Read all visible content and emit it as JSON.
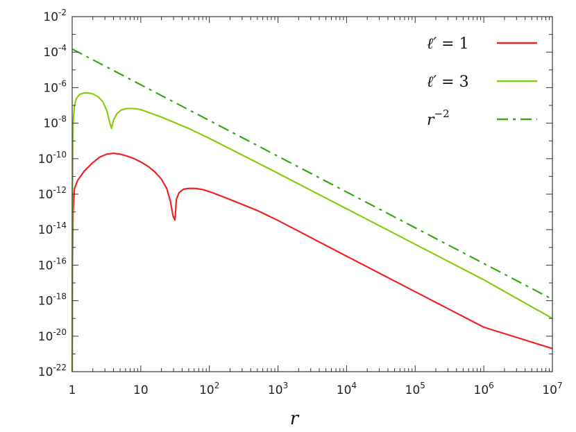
{
  "chart_data": {
    "type": "line",
    "title": "",
    "xlabel": "r",
    "ylabel": "",
    "xscale": "log",
    "yscale": "log",
    "xlim": [
      1,
      10000000
    ],
    "ylim": [
      1e-22,
      0.01
    ],
    "grid": false,
    "legend_position": "top-right",
    "x_ticks": [
      {
        "base": "1",
        "exp": ""
      },
      {
        "base": "10",
        "exp": ""
      },
      {
        "base": "10",
        "exp": "2"
      },
      {
        "base": "10",
        "exp": "3"
      },
      {
        "base": "10",
        "exp": "4"
      },
      {
        "base": "10",
        "exp": "5"
      },
      {
        "base": "10",
        "exp": "6"
      },
      {
        "base": "10",
        "exp": "7"
      }
    ],
    "y_ticks": [
      {
        "base": "10",
        "exp": "-2"
      },
      {
        "base": "10",
        "exp": "-4"
      },
      {
        "base": "10",
        "exp": "-6"
      },
      {
        "base": "10",
        "exp": "-8"
      },
      {
        "base": "10",
        "exp": "-10"
      },
      {
        "base": "10",
        "exp": "-12"
      },
      {
        "base": "10",
        "exp": "-14"
      },
      {
        "base": "10",
        "exp": "-16"
      },
      {
        "base": "10",
        "exp": "-18"
      },
      {
        "base": "10",
        "exp": "-20"
      },
      {
        "base": "10",
        "exp": "-22"
      }
    ],
    "series": [
      {
        "name": "ℓ′ = 1",
        "color": "#ee2222",
        "dash": "solid",
        "points": [
          [
            1.0,
            1e-22
          ],
          [
            1.01,
            1e-16
          ],
          [
            1.03,
            1e-13
          ],
          [
            1.08,
            2e-12
          ],
          [
            1.2,
            6e-12
          ],
          [
            1.5,
            2e-11
          ],
          [
            2.0,
            6e-11
          ],
          [
            2.5,
            1.2e-10
          ],
          [
            3.2,
            1.8e-10
          ],
          [
            4.0,
            2e-10
          ],
          [
            5.0,
            1.8e-10
          ],
          [
            6.3,
            1.4e-10
          ],
          [
            8.0,
            1e-10
          ],
          [
            10.0,
            6.5e-11
          ],
          [
            13.0,
            3.5e-11
          ],
          [
            16.0,
            1.8e-11
          ],
          [
            20.0,
            7e-12
          ],
          [
            24.0,
            2e-12
          ],
          [
            27.0,
            4e-13
          ],
          [
            29.5,
            6e-14
          ],
          [
            31.5,
            3.5e-14
          ],
          [
            33.0,
            5e-13
          ],
          [
            36.0,
            1.2e-12
          ],
          [
            42.0,
            1.9e-12
          ],
          [
            50.0,
            2.1e-12
          ],
          [
            63.0,
            2.1e-12
          ],
          [
            80.0,
            1.8e-12
          ],
          [
            100.0,
            1.4e-12
          ],
          [
            200.0,
            5e-13
          ],
          [
            500.0,
            1.2e-13
          ],
          [
            1000.0,
            3.3e-14
          ],
          [
            10000.0,
            3.2e-16
          ],
          [
            100000.0,
            3.2e-18
          ],
          [
            1000000.0,
            3.2e-20
          ],
          [
            10000000.0,
            2e-21
          ]
        ]
      },
      {
        "name": "ℓ′ = 3",
        "color": "#88cc11",
        "dash": "solid",
        "points": [
          [
            1.0,
            1e-22
          ],
          [
            1.01,
            1e-12
          ],
          [
            1.03,
            1e-08
          ],
          [
            1.08,
            1e-07
          ],
          [
            1.15,
            2.5e-07
          ],
          [
            1.3,
            4.2e-07
          ],
          [
            1.5,
            5e-07
          ],
          [
            1.7,
            5e-07
          ],
          [
            2.0,
            4.5e-07
          ],
          [
            2.4,
            3e-07
          ],
          [
            2.8,
            1.6e-07
          ],
          [
            3.2,
            5e-08
          ],
          [
            3.5,
            1.2e-08
          ],
          [
            3.75,
            5e-09
          ],
          [
            4.0,
            1.5e-08
          ],
          [
            4.5,
            3.5e-08
          ],
          [
            5.2,
            5.5e-08
          ],
          [
            6.0,
            6.5e-08
          ],
          [
            7.0,
            6.8e-08
          ],
          [
            8.5,
            6.5e-08
          ],
          [
            10.0,
            5.8e-08
          ],
          [
            20.0,
            2.2e-08
          ],
          [
            50.0,
            5e-09
          ],
          [
            100.0,
            1.4e-09
          ],
          [
            1000.0,
            1.5e-11
          ],
          [
            10000.0,
            1.5e-13
          ],
          [
            100000.0,
            1.5e-15
          ],
          [
            1000000.0,
            1.5e-17
          ],
          [
            10000000.0,
            1e-19
          ]
        ]
      },
      {
        "name": "r⁻²",
        "color": "#33aa11",
        "dash": "dashdot",
        "points": [
          [
            1.0,
            0.00015
          ],
          [
            10000000.0,
            1.2e-18
          ]
        ]
      }
    ],
    "legend": [
      {
        "pre": "ℓ′",
        "mid": " = ",
        "num": "1",
        "sup": ""
      },
      {
        "pre": "ℓ′",
        "mid": " = ",
        "num": "3",
        "sup": ""
      },
      {
        "pre": "r",
        "mid": "",
        "num": "",
        "sup": "−2"
      }
    ]
  }
}
